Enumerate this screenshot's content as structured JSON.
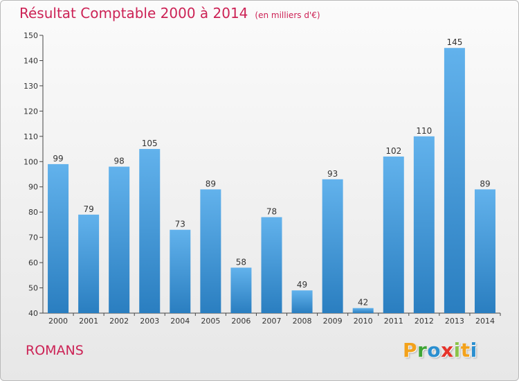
{
  "header": {
    "title": "Résultat Comptable 2000 à 2014",
    "unit": "(en milliers d'€)"
  },
  "footer": {
    "commune": "ROMANS",
    "brand": [
      "P",
      "r",
      "o",
      "x",
      "i",
      "t",
      "i"
    ],
    "brand_colors": [
      "#f3a21b",
      "#3fa535",
      "#2a8fd0",
      "#e6332a",
      "#8bc34a",
      "#f3a21b",
      "#2a8fd0"
    ]
  },
  "colors": {
    "bar_top": "#62b2ec",
    "bar_bottom": "#2a7ec0",
    "title": "#cc2255"
  },
  "chart_data": {
    "type": "bar",
    "title": "Résultat Comptable 2000 à 2014",
    "subtitle": "(en milliers d'€)",
    "categories": [
      "2000",
      "2001",
      "2002",
      "2003",
      "2004",
      "2005",
      "2006",
      "2007",
      "2008",
      "2009",
      "2010",
      "2011",
      "2012",
      "2013",
      "2014"
    ],
    "values": [
      99,
      79,
      98,
      105,
      73,
      89,
      58,
      78,
      49,
      93,
      42,
      102,
      110,
      145,
      89
    ],
    "ylim": [
      40,
      150
    ],
    "yticks": [
      40,
      50,
      60,
      70,
      80,
      90,
      100,
      110,
      120,
      130,
      140,
      150
    ],
    "grid": false,
    "legend": "none"
  }
}
